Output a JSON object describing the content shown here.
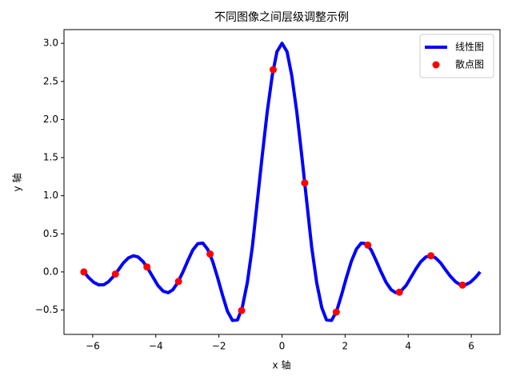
{
  "chart_data": {
    "type": "line",
    "title": "不同图像之间层级调整示例",
    "xlabel": "x 轴",
    "ylabel": "y 轴",
    "xlim": [
      -6.91,
      6.91
    ],
    "ylim": [
      -0.82,
      3.18
    ],
    "xticks": [
      {
        "value": -6,
        "label": "−6"
      },
      {
        "value": -4,
        "label": "−4"
      },
      {
        "value": -2,
        "label": "−2"
      },
      0,
      2,
      4,
      6
    ],
    "yticks": [
      {
        "value": -0.5,
        "label": "−0.5"
      },
      {
        "value": 0,
        "label": "0.0"
      },
      0.5,
      {
        "value": 1,
        "label": "1.0"
      },
      1.5,
      {
        "value": 2,
        "label": "2.0"
      },
      2.5,
      {
        "value": 3,
        "label": "3.0"
      }
    ],
    "grid": false,
    "legend": "upper right",
    "series": [
      {
        "name": "线性图",
        "type": "line",
        "color": "#0000ff",
        "x": [
          -6.28,
          -6.13,
          -5.97,
          -5.81,
          -5.65,
          -5.5,
          -5.34,
          -5.18,
          -5.03,
          -4.87,
          -4.71,
          -4.56,
          -4.4,
          -4.24,
          -4.08,
          -3.93,
          -3.77,
          -3.61,
          -3.46,
          -3.3,
          -3.14,
          -2.98,
          -2.83,
          -2.67,
          -2.51,
          -2.36,
          -2.2,
          -2.04,
          -1.88,
          -1.73,
          -1.57,
          -1.41,
          -1.26,
          -1.1,
          -0.94,
          -0.79,
          -0.63,
          -0.47,
          -0.31,
          -0.16,
          0,
          0.16,
          0.31,
          0.47,
          0.63,
          0.79,
          0.94,
          1.1,
          1.26,
          1.41,
          1.57,
          1.73,
          1.88,
          2.04,
          2.2,
          2.36,
          2.51,
          2.67,
          2.83,
          2.98,
          3.14,
          3.3,
          3.46,
          3.61,
          3.77,
          3.93,
          4.08,
          4.24,
          4.4,
          4.56,
          4.71,
          4.87,
          5.03,
          5.18,
          5.34,
          5.5,
          5.65,
          5.81,
          5.97,
          6.13,
          6.28
        ],
        "values": [
          0,
          -0.074,
          -0.136,
          -0.17,
          -0.168,
          -0.129,
          -0.058,
          0.03,
          0.117,
          0.183,
          0.212,
          0.196,
          0.134,
          0.037,
          -0.076,
          -0.18,
          -0.252,
          -0.273,
          -0.234,
          -0.138,
          0,
          0.152,
          0.286,
          0.37,
          0.378,
          0.3,
          0.141,
          -0.077,
          -0.312,
          -0.516,
          -0.637,
          -0.63,
          -0.468,
          -0.142,
          0.328,
          0.9,
          1.514,
          2.096,
          2.575,
          2.89,
          3,
          2.89,
          2.575,
          2.096,
          1.514,
          0.9,
          0.328,
          -0.142,
          -0.468,
          -0.63,
          -0.637,
          -0.516,
          -0.312,
          -0.077,
          0.141,
          0.3,
          0.378,
          0.37,
          0.286,
          0.152,
          0,
          -0.138,
          -0.234,
          -0.273,
          -0.252,
          -0.18,
          -0.076,
          0.037,
          0.134,
          0.196,
          0.212,
          0.183,
          0.117,
          0.03,
          -0.058,
          -0.129,
          -0.168,
          -0.17,
          -0.136,
          -0.074,
          0
        ]
      },
      {
        "name": "散点图",
        "type": "scatter",
        "color": "#ff0000",
        "x": [
          -6.28,
          -5.28,
          -4.28,
          -3.28,
          -2.28,
          -1.28,
          -0.28,
          0.72,
          1.72,
          2.72,
          3.72,
          4.72,
          5.72
        ],
        "values": [
          0,
          -0.027,
          0.065,
          -0.125,
          0.235,
          -0.507,
          2.654,
          1.167,
          -0.527,
          0.352,
          -0.266,
          0.212,
          -0.173
        ]
      }
    ]
  }
}
